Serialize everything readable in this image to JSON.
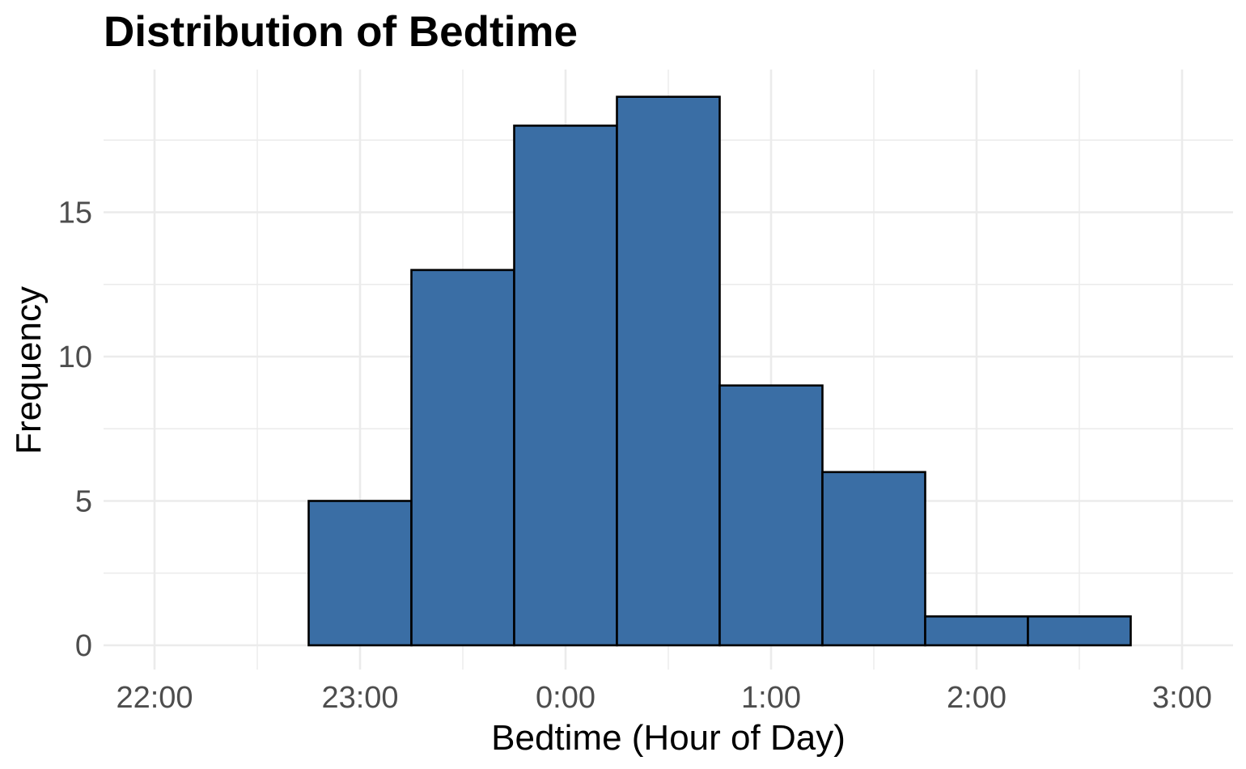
{
  "chart_data": {
    "type": "bar",
    "title": "Distribution of Bedtime",
    "xlabel": "Bedtime (Hour of Day)",
    "ylabel": "Frequency",
    "bin_width_hours": 0.5,
    "bins": [
      {
        "start": "22:15",
        "end": "22:45",
        "value": 0
      },
      {
        "start": "22:45",
        "end": "23:15",
        "value": 5
      },
      {
        "start": "23:15",
        "end": "23:45",
        "value": 13
      },
      {
        "start": "23:45",
        "end": "0:15",
        "value": 18
      },
      {
        "start": "0:15",
        "end": "0:45",
        "value": 19
      },
      {
        "start": "0:45",
        "end": "1:15",
        "value": 9
      },
      {
        "start": "1:15",
        "end": "1:45",
        "value": 6
      },
      {
        "start": "1:45",
        "end": "2:15",
        "value": 1
      },
      {
        "start": "2:15",
        "end": "2:45",
        "value": 1
      }
    ],
    "x_ticks": [
      "22:00",
      "23:00",
      "0:00",
      "1:00",
      "2:00",
      "3:00"
    ],
    "y_ticks": [
      0,
      5,
      10,
      15
    ],
    "ylim": [
      0,
      20
    ],
    "bar_color": "#3a6ea5",
    "bar_outline": "#000000",
    "grid_color": "#ebebeb",
    "grid": true
  }
}
